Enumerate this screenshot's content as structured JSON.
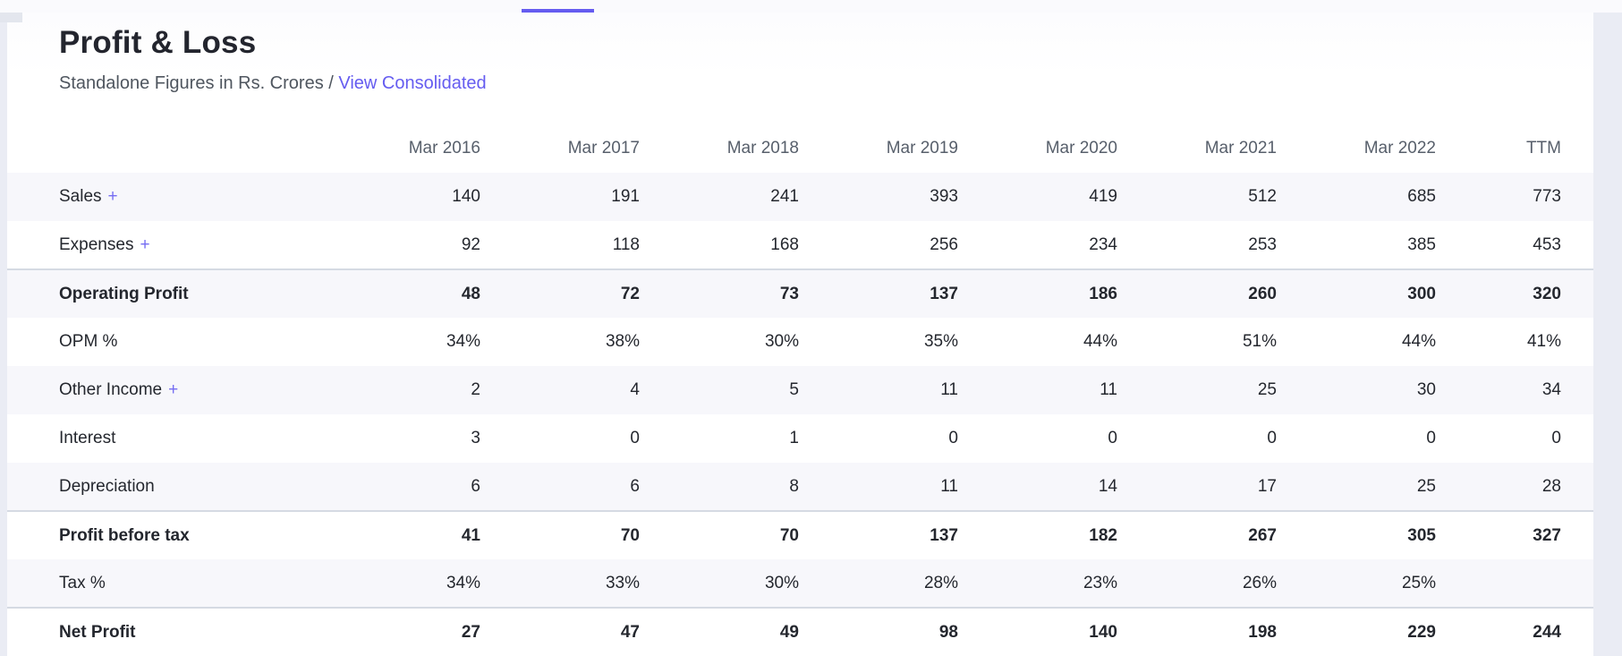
{
  "header": {
    "title": "Profit & Loss",
    "subtitle": "Standalone Figures in Rs. Crores /",
    "link_label": "View Consolidated"
  },
  "icons": {
    "plus": "+"
  },
  "colors": {
    "accent_purple": "#655cf0",
    "page_background": "#eaecf4",
    "card_background": "#ffffff",
    "stripe_background": "#f7f7fb",
    "summary_border": "#d5dae3",
    "text_dark": "#24272e",
    "text_gray": "#575f6b"
  },
  "table": {
    "columns": [
      "Mar 2016",
      "Mar 2017",
      "Mar 2018",
      "Mar 2019",
      "Mar 2020",
      "Mar 2021",
      "Mar 2022",
      "TTM"
    ],
    "rows": [
      {
        "label": "Sales",
        "expandable": true,
        "bold": false,
        "values": [
          "140",
          "191",
          "241",
          "393",
          "419",
          "512",
          "685",
          "773"
        ]
      },
      {
        "label": "Expenses",
        "expandable": true,
        "bold": false,
        "values": [
          "92",
          "118",
          "168",
          "256",
          "234",
          "253",
          "385",
          "453"
        ]
      },
      {
        "label": "Operating Profit",
        "expandable": false,
        "bold": true,
        "values": [
          "48",
          "72",
          "73",
          "137",
          "186",
          "260",
          "300",
          "320"
        ]
      },
      {
        "label": "OPM %",
        "expandable": false,
        "bold": false,
        "values": [
          "34%",
          "38%",
          "30%",
          "35%",
          "44%",
          "51%",
          "44%",
          "41%"
        ]
      },
      {
        "label": "Other Income",
        "expandable": true,
        "bold": false,
        "values": [
          "2",
          "4",
          "5",
          "11",
          "11",
          "25",
          "30",
          "34"
        ]
      },
      {
        "label": "Interest",
        "expandable": false,
        "bold": false,
        "values": [
          "3",
          "0",
          "1",
          "0",
          "0",
          "0",
          "0",
          "0"
        ]
      },
      {
        "label": "Depreciation",
        "expandable": false,
        "bold": false,
        "values": [
          "6",
          "6",
          "8",
          "11",
          "14",
          "17",
          "25",
          "28"
        ]
      },
      {
        "label": "Profit before tax",
        "expandable": false,
        "bold": true,
        "values": [
          "41",
          "70",
          "70",
          "137",
          "182",
          "267",
          "305",
          "327"
        ]
      },
      {
        "label": "Tax %",
        "expandable": false,
        "bold": false,
        "values": [
          "34%",
          "33%",
          "30%",
          "28%",
          "23%",
          "26%",
          "25%",
          ""
        ]
      },
      {
        "label": "Net Profit",
        "expandable": false,
        "bold": true,
        "values": [
          "27",
          "47",
          "49",
          "98",
          "140",
          "198",
          "229",
          "244"
        ]
      }
    ]
  }
}
